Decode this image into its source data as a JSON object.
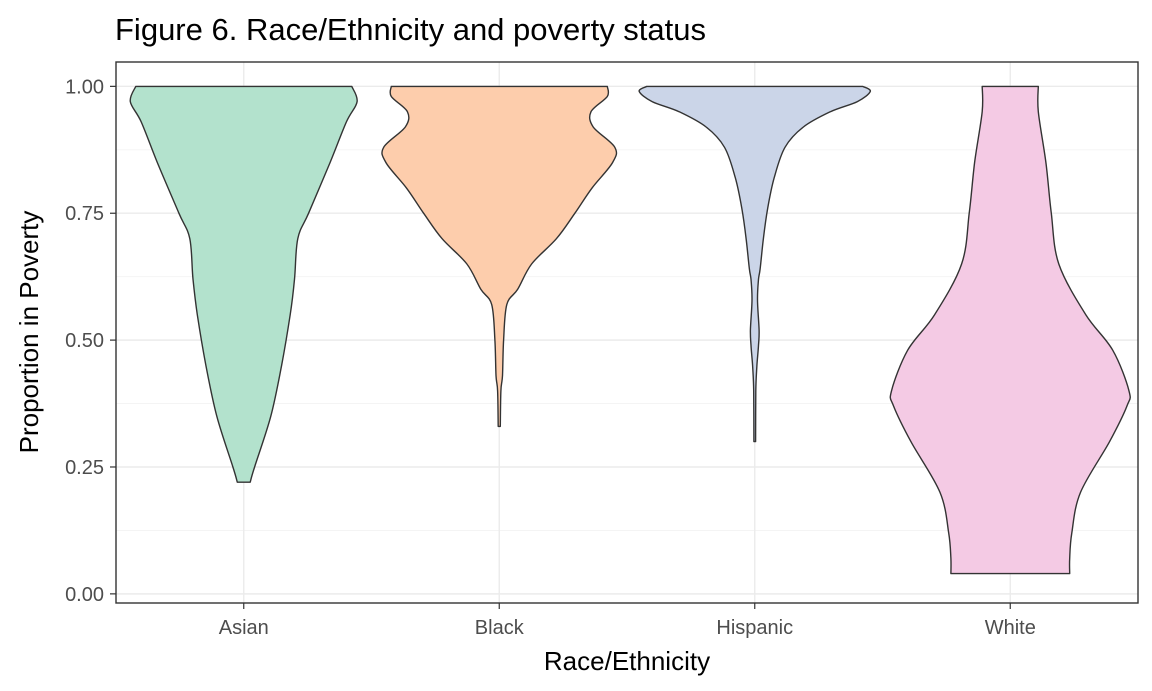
{
  "chart_data": {
    "type": "violin",
    "title": "Figure 6. Race/Ethnicity and poverty status",
    "xlabel": "Race/Ethnicity",
    "ylabel": "Proportion in Poverty",
    "ylim": [
      -0.018,
      1.048
    ],
    "yticks": [
      {
        "value": 0.0,
        "label": "0.00"
      },
      {
        "value": 0.25,
        "label": "0.25"
      },
      {
        "value": 0.5,
        "label": "0.50"
      },
      {
        "value": 0.75,
        "label": "0.75"
      },
      {
        "value": 1.0,
        "label": "1.00"
      }
    ],
    "y_minor_ticks": [
      0.125,
      0.375,
      0.625,
      0.875
    ],
    "grid": true,
    "legend": "none",
    "categories": [
      "Asian",
      "Black",
      "Hispanic",
      "White"
    ],
    "series": [
      {
        "category": "Asian",
        "color": "#b3e2cd",
        "min": 0.22,
        "max": 1.0,
        "width_profile": [
          [
            1.0,
            1.0
          ],
          [
            0.97,
            1.05
          ],
          [
            0.93,
            0.95
          ],
          [
            0.85,
            0.8
          ],
          [
            0.75,
            0.6
          ],
          [
            0.7,
            0.5
          ],
          [
            0.62,
            0.47
          ],
          [
            0.55,
            0.43
          ],
          [
            0.45,
            0.35
          ],
          [
            0.35,
            0.25
          ],
          [
            0.25,
            0.1
          ],
          [
            0.22,
            0.06
          ]
        ]
      },
      {
        "category": "Black",
        "color": "#fdcdac",
        "min": 0.33,
        "max": 1.0,
        "width_profile": [
          [
            1.0,
            1.0
          ],
          [
            0.98,
            1.0
          ],
          [
            0.95,
            0.85
          ],
          [
            0.92,
            0.87
          ],
          [
            0.88,
            1.07
          ],
          [
            0.85,
            1.05
          ],
          [
            0.8,
            0.86
          ],
          [
            0.75,
            0.7
          ],
          [
            0.7,
            0.53
          ],
          [
            0.65,
            0.3
          ],
          [
            0.6,
            0.17
          ],
          [
            0.57,
            0.07
          ],
          [
            0.5,
            0.04
          ],
          [
            0.43,
            0.03
          ],
          [
            0.4,
            0.015
          ],
          [
            0.33,
            0.01
          ]
        ]
      },
      {
        "category": "Hispanic",
        "color": "#cbd5e8",
        "min": 0.3,
        "max": 1.0,
        "width_profile": [
          [
            1.0,
            1.0
          ],
          [
            0.99,
            1.07
          ],
          [
            0.97,
            0.95
          ],
          [
            0.95,
            0.7
          ],
          [
            0.92,
            0.45
          ],
          [
            0.88,
            0.28
          ],
          [
            0.82,
            0.18
          ],
          [
            0.76,
            0.12
          ],
          [
            0.7,
            0.08
          ],
          [
            0.64,
            0.05
          ],
          [
            0.62,
            0.035
          ],
          [
            0.58,
            0.025
          ],
          [
            0.52,
            0.04
          ],
          [
            0.49,
            0.035
          ],
          [
            0.45,
            0.02
          ],
          [
            0.4,
            0.01
          ],
          [
            0.3,
            0.008
          ]
        ]
      },
      {
        "category": "White",
        "color": "#f4cae4",
        "min": 0.04,
        "max": 1.0,
        "width_profile": [
          [
            1.0,
            0.26
          ],
          [
            0.95,
            0.26
          ],
          [
            0.85,
            0.33
          ],
          [
            0.75,
            0.38
          ],
          [
            0.65,
            0.45
          ],
          [
            0.55,
            0.7
          ],
          [
            0.48,
            0.95
          ],
          [
            0.4,
            1.1
          ],
          [
            0.37,
            1.08
          ],
          [
            0.3,
            0.92
          ],
          [
            0.2,
            0.65
          ],
          [
            0.12,
            0.57
          ],
          [
            0.07,
            0.55
          ],
          [
            0.04,
            0.55
          ]
        ]
      }
    ]
  }
}
